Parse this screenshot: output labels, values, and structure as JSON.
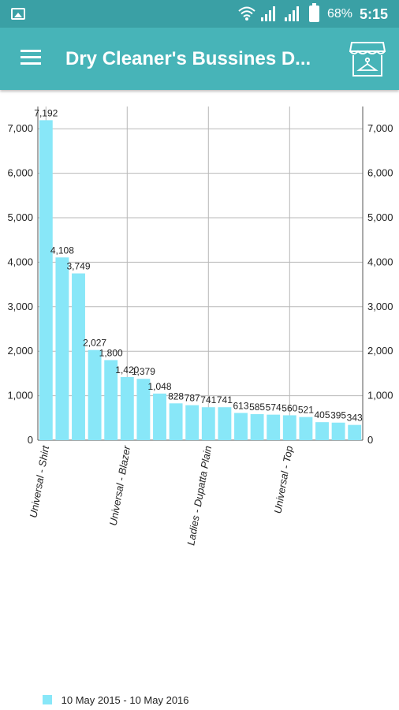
{
  "status_bar": {
    "icons": [
      "image-icon",
      "wifi-icon",
      "signal-icon",
      "signal-icon",
      "battery-icon"
    ],
    "battery": "68%",
    "time": "5:15"
  },
  "app_bar": {
    "title": "Dry Cleaner's Bussines D...",
    "menu_icon": "menu-icon",
    "store_icon": "store-hanger-icon",
    "color": "#47b4b8"
  },
  "chart_data": {
    "type": "bar",
    "categories": [
      "Universal - Shirt",
      "",
      "",
      "",
      "",
      "Universal - Blazer",
      "",
      "",
      "",
      "",
      "Ladies - Dupatta Plain",
      "",
      "",
      "",
      "",
      "Universal - Top",
      "",
      "",
      "",
      ""
    ],
    "values": [
      7192,
      4108,
      3749,
      2027,
      1800,
      1420,
      1379,
      1048,
      828,
      787,
      741,
      741,
      613,
      585,
      574,
      560,
      521,
      405,
      395,
      343
    ],
    "value_labels": [
      "7,192",
      "4,108",
      "3,749",
      "2,027",
      "1,800",
      "1,420",
      "1,379",
      "1,048",
      "828",
      "787",
      "741",
      "741",
      "613",
      "585",
      "574",
      "560",
      "521",
      "405",
      "395",
      "343"
    ],
    "y_ticks": [
      "0",
      "1,000",
      "2,000",
      "3,000",
      "4,000",
      "5,000",
      "6,000",
      "7,000"
    ],
    "ylim": [
      0,
      7500
    ],
    "grid": true,
    "axes": "left-and-right",
    "bar_color": "#88e7f8",
    "legend": {
      "position": "bottom-left",
      "entries": [
        {
          "label": "10 May 2015 - 10 May 2016",
          "color": "#88e7f8"
        }
      ]
    }
  }
}
